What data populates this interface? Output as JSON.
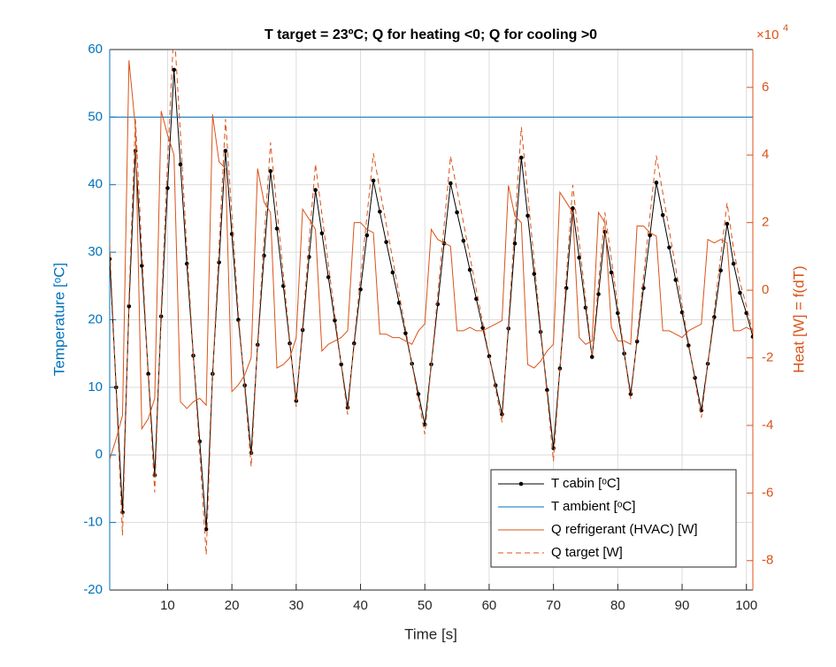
{
  "chart_data": {
    "type": "line",
    "title": "T target = 23ºC; Q for heating <0; Q for cooling >0",
    "x_label": "Time [s]",
    "y_label": "Temperature [ᵒC]",
    "y2_label": "Heat [W] = f(dT)",
    "y2_multiplier": "×10",
    "y2_multiplier_exp": "4",
    "xlim": [
      1,
      101
    ],
    "xticks": [
      10,
      20,
      30,
      40,
      50,
      60,
      70,
      80,
      90,
      100
    ],
    "ylim": [
      -20,
      60
    ],
    "yticks": [
      -20,
      -10,
      0,
      10,
      20,
      30,
      40,
      50,
      60
    ],
    "y2lim": [
      -88700,
      71200
    ],
    "y2ticks": [
      {
        "value": -80000,
        "label": "-8"
      },
      {
        "value": -60000,
        "label": "-6"
      },
      {
        "value": -40000,
        "label": "-4"
      },
      {
        "value": -20000,
        "label": "-2"
      },
      {
        "value": 0,
        "label": "0"
      },
      {
        "value": 20000,
        "label": "2"
      },
      {
        "value": 40000,
        "label": "4"
      },
      {
        "value": 60000,
        "label": "6"
      }
    ],
    "grid": true,
    "legend": "lower right",
    "x": [
      1,
      2,
      3,
      4,
      5,
      6,
      7,
      8,
      9,
      10,
      11,
      12,
      13,
      14,
      15,
      16,
      17,
      18,
      19,
      20,
      21,
      22,
      23,
      24,
      25,
      26,
      27,
      28,
      29,
      30,
      31,
      32,
      33,
      34,
      35,
      36,
      37,
      38,
      39,
      40,
      41,
      42,
      43,
      44,
      45,
      46,
      47,
      48,
      49,
      50,
      51,
      52,
      53,
      54,
      55,
      56,
      57,
      58,
      59,
      60,
      61,
      62,
      63,
      64,
      65,
      66,
      67,
      68,
      69,
      70,
      71,
      72,
      73,
      74,
      75,
      76,
      77,
      78,
      79,
      80,
      81,
      82,
      83,
      84,
      85,
      86,
      87,
      88,
      89,
      90,
      91,
      92,
      93,
      94,
      95,
      96,
      97,
      98,
      99,
      100,
      101
    ],
    "series": [
      {
        "name": "T cabin [ᵒC]",
        "color": "#000000",
        "marker": true,
        "style": "solid",
        "values": [
          29,
          10,
          -8.5,
          22,
          45,
          28,
          12,
          -3,
          20.5,
          39.5,
          57,
          43,
          28.3,
          14.7,
          2,
          -11,
          12,
          28.5,
          45,
          32.7,
          20,
          10.3,
          0.3,
          16.3,
          29.5,
          42,
          33.5,
          25,
          16.5,
          8,
          18.5,
          29.3,
          39.2,
          32.8,
          26.3,
          19.9,
          13.4,
          7,
          16.5,
          24.5,
          32.5,
          40.6,
          36,
          31.5,
          27,
          22.5,
          18,
          13.5,
          9,
          4.5,
          13.4,
          22.3,
          31.3,
          40.2,
          35.9,
          31.7,
          27.4,
          23.1,
          18.8,
          14.6,
          10.3,
          6,
          18.7,
          31.3,
          44,
          35.4,
          26.8,
          18.2,
          9.6,
          1,
          12.8,
          24.7,
          36.5,
          29.2,
          21.8,
          14.5,
          23.8,
          33,
          27,
          21,
          15,
          9,
          16.8,
          24.7,
          32.5,
          40.3,
          35.5,
          30.7,
          25.9,
          21.1,
          16.2,
          11.4,
          6.6,
          13.5,
          20.4,
          27.3,
          34.2,
          28.3,
          24,
          21,
          17.5
        ]
      },
      {
        "name": "T ambient [ᵒC]",
        "color": "#0072BD",
        "marker": false,
        "style": "solid",
        "x": [
          1,
          101
        ],
        "values": [
          50,
          50
        ]
      },
      {
        "name": "Q refrigerant (HVAC) [W]",
        "color": "#D95319",
        "marker": false,
        "style": "solid",
        "axis": "y2",
        "values": [
          -50000,
          -44000,
          -37000,
          68000,
          48000,
          -41000,
          -38000,
          -32000,
          53000,
          46000,
          40000,
          -33000,
          -35000,
          -33000,
          -32000,
          -34000,
          52000,
          38000,
          36000,
          -30000,
          -28000,
          -25000,
          -20000,
          36000,
          26000,
          23000,
          -23000,
          -22000,
          -20000,
          -14000,
          24000,
          21000,
          18000,
          -18000,
          -16000,
          -15000,
          -14000,
          -12000,
          20000,
          20000,
          18000,
          17000,
          -13000,
          -13000,
          -14000,
          -14000,
          -15000,
          -16000,
          -12000,
          -10000,
          18000,
          15000,
          14000,
          13000,
          -12000,
          -12000,
          -11000,
          -12000,
          -12000,
          -11000,
          -10000,
          -9000,
          31000,
          22000,
          20000,
          -22000,
          -23000,
          -21000,
          -18000,
          -16000,
          29000,
          26000,
          23000,
          -14000,
          -16000,
          -15000,
          23000,
          20000,
          -11000,
          -15000,
          -15000,
          -16000,
          19000,
          19000,
          17000,
          16000,
          -12000,
          -12000,
          -13000,
          -14000,
          -12000,
          -11000,
          -10000,
          15000,
          14000,
          15000,
          14000,
          -12000,
          -12000,
          -11000,
          -12000
        ]
      },
      {
        "name": "Q target [W]",
        "color": "#D95319",
        "marker": false,
        "style": "dashed",
        "axis": "y2",
        "values": [
          13800,
          -29900,
          -72500,
          -2300,
          50600,
          11500,
          -25300,
          -59800,
          -5800,
          37900,
          78200,
          46000,
          12200,
          -19100,
          -48300,
          -78200,
          -25300,
          12700,
          50600,
          22300,
          -6900,
          -29200,
          -52200,
          -15400,
          15000,
          43700,
          24200,
          4600,
          -15000,
          -34500,
          -10400,
          14500,
          37300,
          22500,
          7600,
          -7100,
          -22100,
          -36800,
          -15000,
          3500,
          21900,
          40500,
          29900,
          19600,
          9200,
          -1200,
          -11500,
          -21900,
          -32200,
          -42600,
          -22100,
          -1600,
          19100,
          39600,
          29700,
          20000,
          10100,
          200,
          -9700,
          -19300,
          -29200,
          -39100,
          -9900,
          19100,
          48300,
          28500,
          8700,
          -11000,
          -30800,
          -50600,
          -23500,
          3900,
          31100,
          14300,
          -2800,
          -19600,
          1800,
          23000,
          9200,
          -4600,
          -18400,
          -32200,
          -14300,
          3900,
          21900,
          39800,
          28800,
          17700,
          6700,
          -4400,
          -15600,
          -26700,
          -37700,
          -21900,
          -6000,
          9900,
          25800,
          12200,
          2300,
          -4600,
          -12700
        ]
      }
    ]
  }
}
